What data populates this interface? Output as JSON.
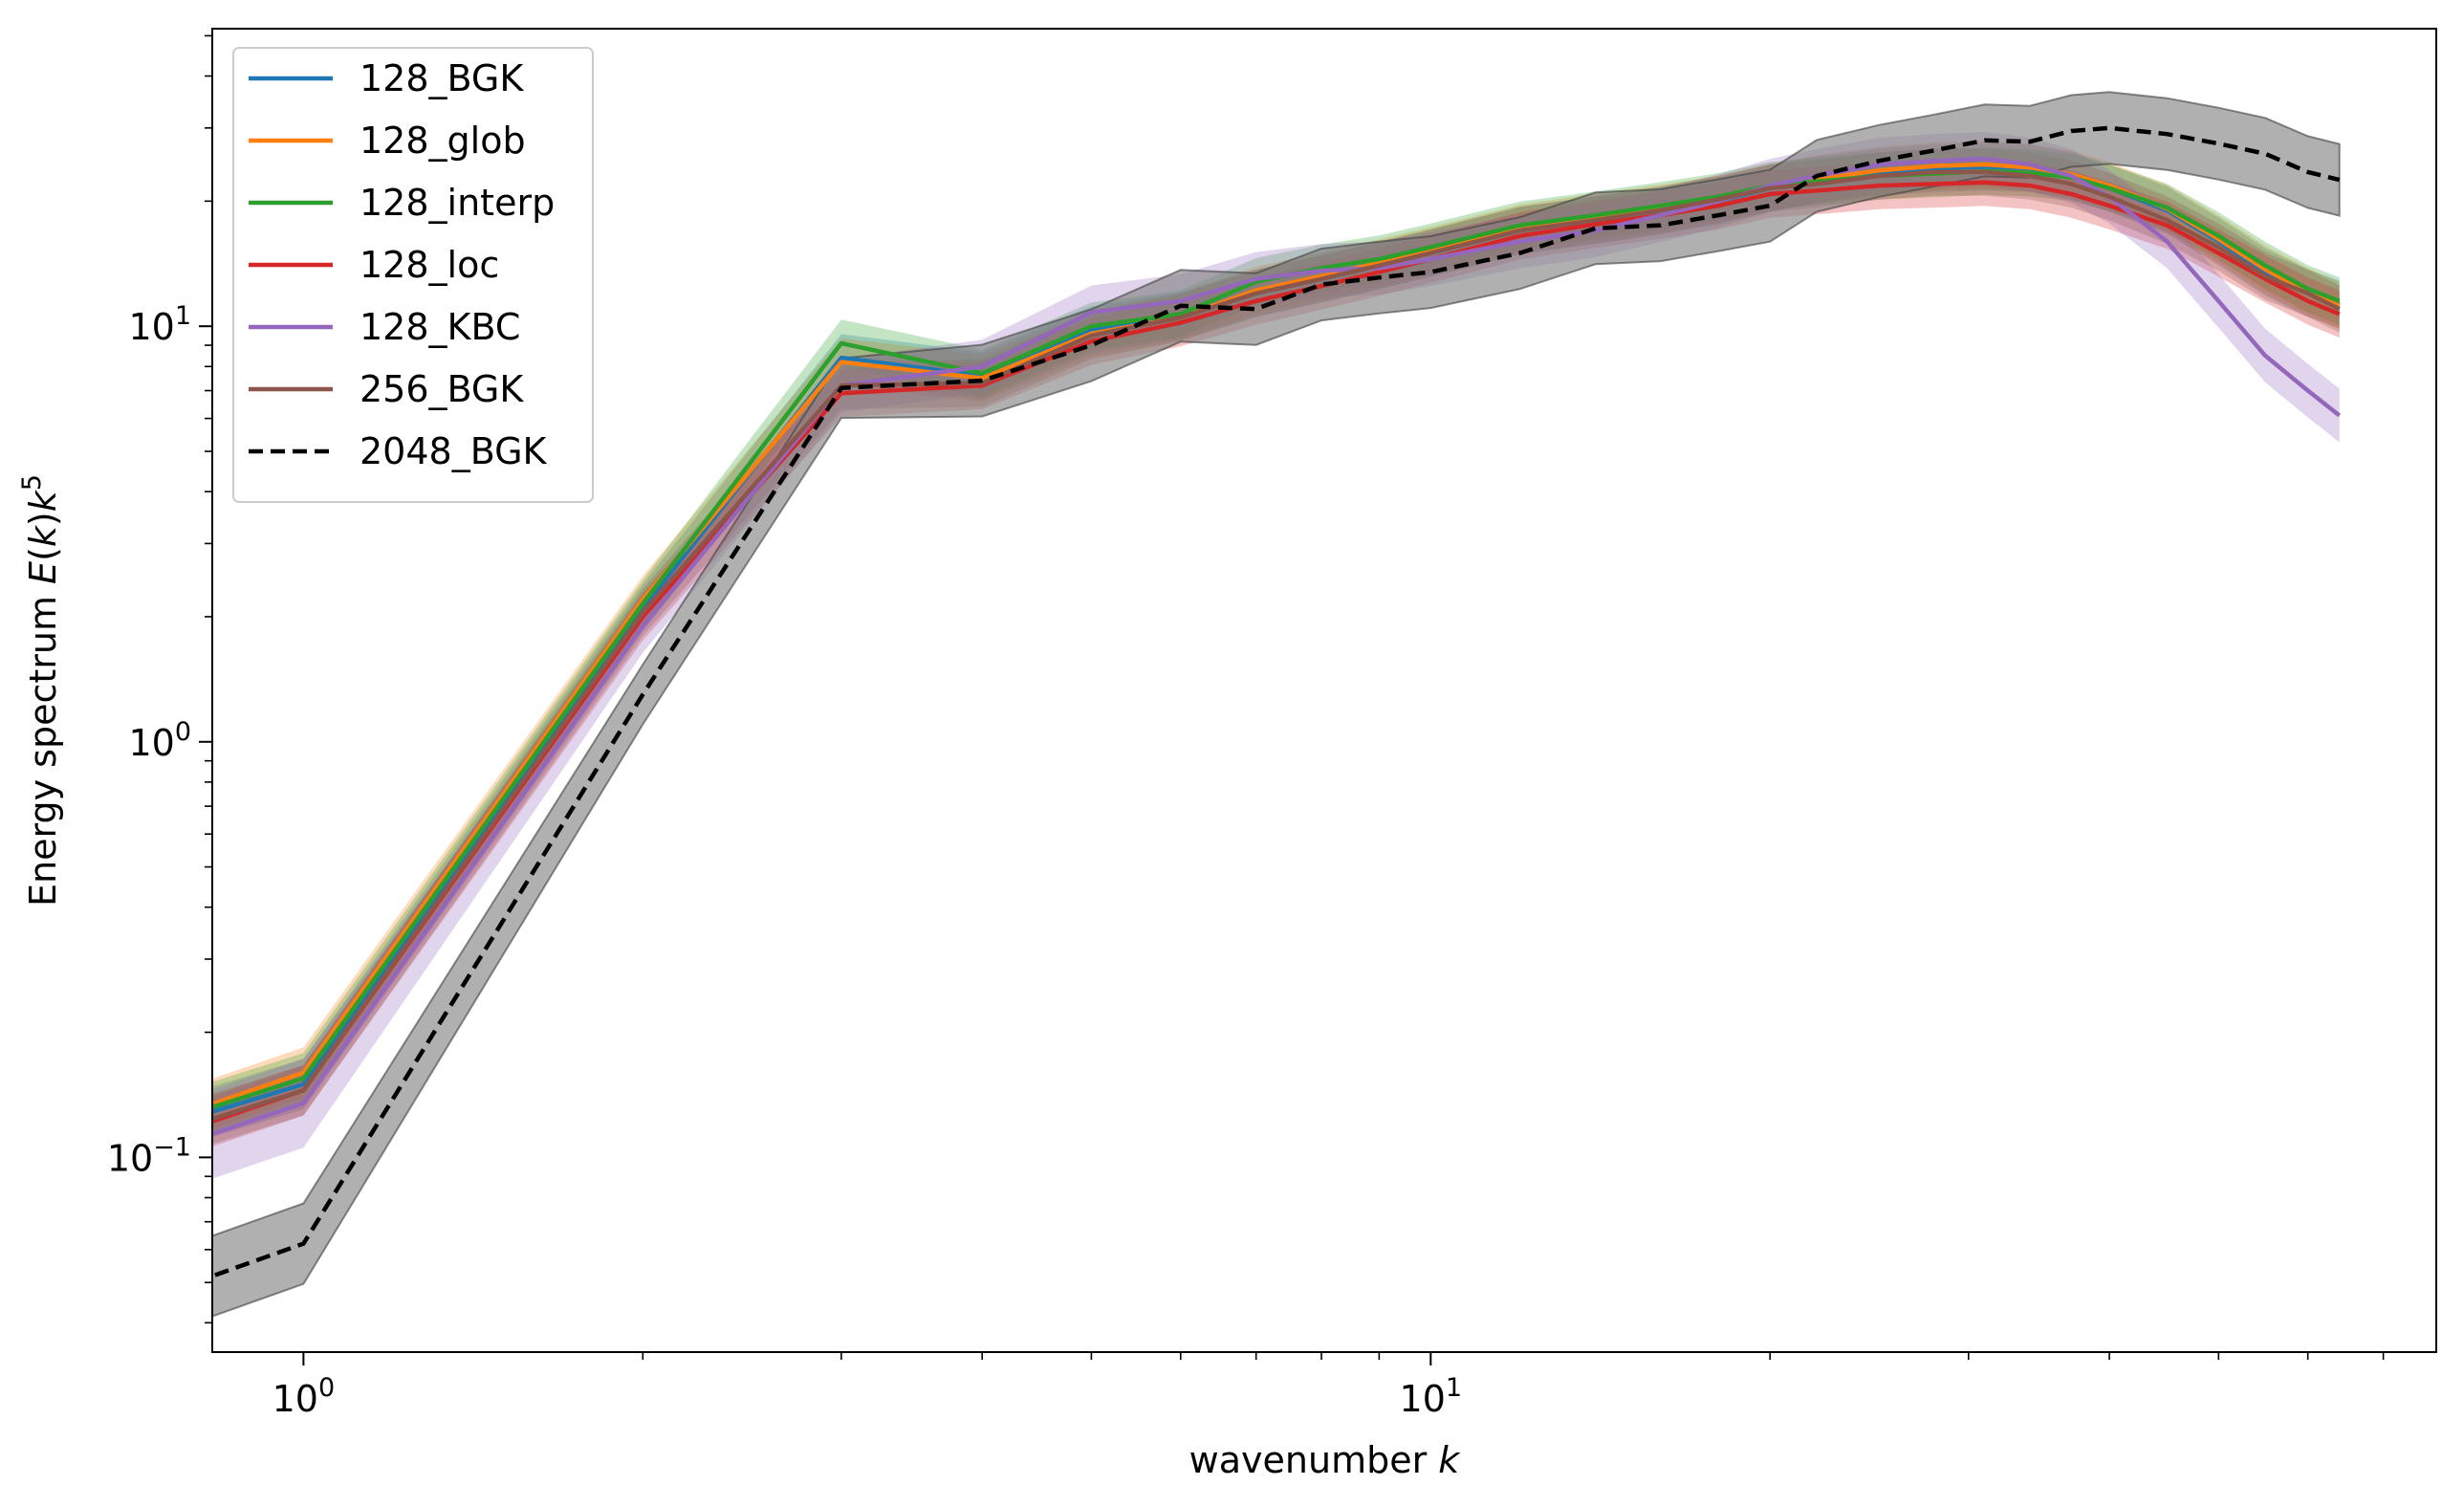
{
  "chart_data": {
    "type": "line",
    "xlabel": "wavenumber k",
    "ylabel": "Energy spectrum E(k)k^5",
    "xscale": "log",
    "yscale": "log",
    "xlim": [
      0.83,
      78
    ],
    "ylim": [
      0.034,
      52
    ],
    "grid": false,
    "legend_position": "top-left",
    "x_tick_labels": [
      "10^0",
      "10^1"
    ],
    "y_tick_labels": [
      "10^-1",
      "10^0",
      "10^1"
    ],
    "x": [
      0.8,
      1,
      2,
      3,
      4,
      5,
      6,
      7,
      8,
      9,
      10,
      12,
      14,
      16,
      18,
      20,
      22,
      25,
      28,
      31,
      34,
      37,
      40,
      45,
      50,
      55,
      60,
      64
    ],
    "series": [
      {
        "name": "128_BGK",
        "color": "#1f77b4",
        "dash": false,
        "values": [
          0.125,
          0.15,
          2.1,
          8.4,
          7.6,
          9.8,
          10.6,
          12.0,
          13.0,
          14.0,
          15.0,
          17.0,
          18.0,
          19.0,
          20.0,
          21.5,
          22.5,
          23.5,
          24.0,
          24.2,
          24.0,
          23.0,
          21.5,
          19.0,
          16.0,
          13.5,
          12.0,
          11.3
        ],
        "band": [
          0.11,
          0.17,
          1.8,
          2.4
        ]
      },
      {
        "name": "128_glob",
        "color": "#ff7f0e",
        "dash": false,
        "values": [
          0.13,
          0.16,
          2.2,
          8.2,
          7.5,
          9.6,
          10.5,
          12.2,
          13.2,
          14.2,
          15.2,
          17.2,
          18.3,
          19.2,
          20.2,
          21.6,
          22.6,
          23.7,
          24.3,
          24.5,
          24.1,
          23.2,
          21.8,
          19.2,
          16.2,
          13.7,
          12.1,
          11.2
        ],
        "band": [
          0.11,
          0.18,
          1.8,
          2.4
        ]
      },
      {
        "name": "128_interp",
        "color": "#2ca02c",
        "dash": false,
        "values": [
          0.128,
          0.155,
          2.15,
          9.1,
          7.7,
          10.0,
          10.7,
          12.8,
          13.8,
          14.5,
          15.5,
          17.5,
          18.5,
          19.5,
          20.5,
          21.8,
          22.3,
          23.0,
          23.3,
          23.6,
          23.4,
          22.8,
          21.5,
          19.3,
          16.5,
          14.0,
          12.3,
          11.5
        ],
        "band": [
          0.11,
          0.17,
          1.8,
          2.4
        ]
      },
      {
        "name": "128_loc",
        "color": "#d62728",
        "dash": false,
        "values": [
          0.118,
          0.145,
          2.0,
          6.9,
          7.2,
          9.2,
          10.2,
          11.5,
          12.5,
          13.5,
          14.5,
          16.5,
          17.6,
          18.5,
          19.5,
          20.8,
          21.2,
          21.8,
          22.0,
          22.2,
          21.8,
          20.8,
          19.5,
          17.5,
          15.0,
          13.0,
          11.5,
          10.7
        ],
        "band": [
          0.1,
          0.16,
          1.7,
          2.2
        ]
      },
      {
        "name": "128_KBC",
        "color": "#9467bd",
        "dash": false,
        "values": [
          0.11,
          0.135,
          1.9,
          7.2,
          8.0,
          10.8,
          11.5,
          13.0,
          13.6,
          13.8,
          14.5,
          16.0,
          17.0,
          18.5,
          20.0,
          21.8,
          23.0,
          24.5,
          25.0,
          25.3,
          24.5,
          23.0,
          20.5,
          16.0,
          11.5,
          8.5,
          7.0,
          6.1
        ],
        "band": [
          0.09,
          0.13,
          1.6,
          2.1
        ]
      },
      {
        "name": "256_BGK",
        "color": "#8c564b",
        "dash": false,
        "values": [
          0.12,
          0.145,
          2.05,
          7.2,
          7.3,
          9.5,
          10.5,
          12.0,
          13.0,
          14.0,
          15.0,
          17.0,
          18.0,
          19.0,
          20.2,
          21.5,
          22.0,
          23.0,
          23.5,
          23.5,
          23.0,
          22.0,
          20.5,
          18.0,
          15.5,
          13.2,
          12.0,
          11.0
        ],
        "band": [
          0.105,
          0.165,
          1.8,
          2.3
        ]
      },
      {
        "name": "2048_BGK",
        "color": "#000000",
        "dash": true,
        "values": [
          0.05,
          0.062,
          1.3,
          7.1,
          7.4,
          9.0,
          11.2,
          11.0,
          12.6,
          13.1,
          13.5,
          15.0,
          17.2,
          17.5,
          18.5,
          19.5,
          23.0,
          25.0,
          26.5,
          28.0,
          27.8,
          29.5,
          30.0,
          29.0,
          27.5,
          26.0,
          23.5,
          22.5
        ],
        "band": [
          0.0375,
          0.077,
          1.2,
          1.32
        ]
      }
    ]
  }
}
